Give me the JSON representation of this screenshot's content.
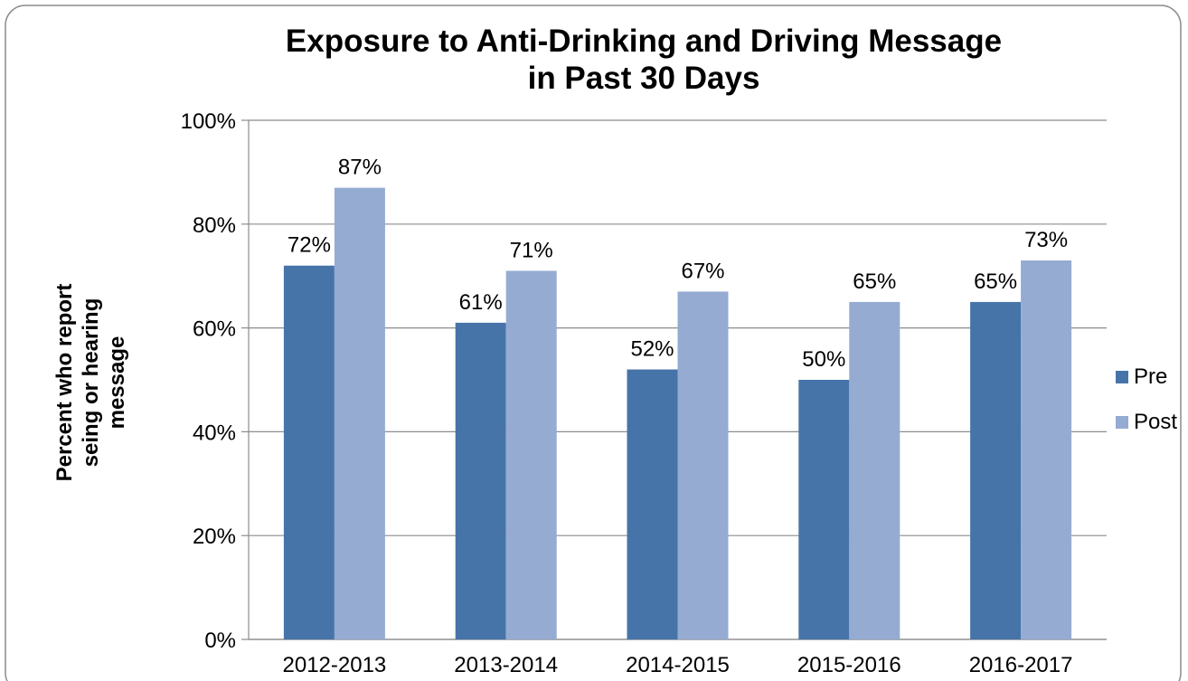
{
  "chart_data": {
    "type": "bar",
    "title": [
      "Exposure to Anti-Drinking and Driving Message",
      "in Past 30 Days"
    ],
    "ylabel": [
      "Percent  who report",
      "seing or hearing",
      "message"
    ],
    "categories": [
      "2012-2013",
      "2013-2014",
      "2014-2015",
      "2015-2016",
      "2016-2017"
    ],
    "series": [
      {
        "name": "Pre",
        "values": [
          72,
          61,
          52,
          50,
          65
        ],
        "labels": [
          "72%",
          "61%",
          "52%",
          "50%",
          "65%"
        ],
        "color": "#4674a9"
      },
      {
        "name": "Post",
        "values": [
          87,
          71,
          67,
          65,
          73
        ],
        "labels": [
          "87%",
          "71%",
          "67%",
          "65%",
          "73%"
        ],
        "color": "#95abd2"
      }
    ],
    "ylim": [
      0,
      100
    ],
    "yticks": [
      "0%",
      "20%",
      "40%",
      "60%",
      "80%",
      "100%"
    ],
    "grid": true,
    "legend_position": "right"
  }
}
